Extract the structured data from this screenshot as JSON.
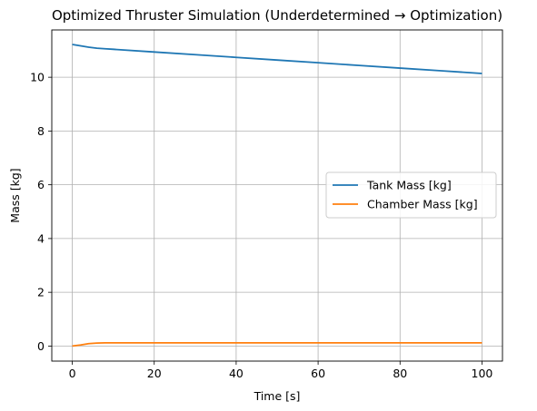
{
  "chart_data": {
    "type": "line",
    "title": "Optimized Thruster Simulation (Underdetermined → Optimization)",
    "xlabel": "Time [s]",
    "ylabel": "Mass [kg]",
    "xlim": [
      -5,
      105
    ],
    "ylim": [
      -0.56,
      11.76
    ],
    "xticks": [
      0,
      20,
      40,
      60,
      80,
      100
    ],
    "yticks": [
      0,
      2,
      4,
      6,
      8,
      10
    ],
    "xtick_labels": [
      "0",
      "20",
      "40",
      "60",
      "80",
      "100"
    ],
    "ytick_labels": [
      "0",
      "2",
      "4",
      "6",
      "8",
      "10"
    ],
    "grid": true,
    "legend_position": "center-right",
    "series": [
      {
        "name": "Tank Mass [kg]",
        "color": "#1f77b4",
        "x": [
          0,
          2,
          4,
          6,
          8,
          10,
          20,
          30,
          40,
          50,
          60,
          70,
          80,
          90,
          100
        ],
        "y": [
          11.22,
          11.17,
          11.12,
          11.08,
          11.06,
          11.04,
          10.94,
          10.84,
          10.74,
          10.64,
          10.54,
          10.44,
          10.34,
          10.24,
          10.14
        ]
      },
      {
        "name": "Chamber Mass [kg]",
        "color": "#ff7f0e",
        "x": [
          0,
          2,
          4,
          6,
          8,
          10,
          20,
          40,
          60,
          80,
          100
        ],
        "y": [
          0.0,
          0.04,
          0.09,
          0.11,
          0.12,
          0.12,
          0.12,
          0.12,
          0.12,
          0.12,
          0.12
        ]
      }
    ]
  }
}
